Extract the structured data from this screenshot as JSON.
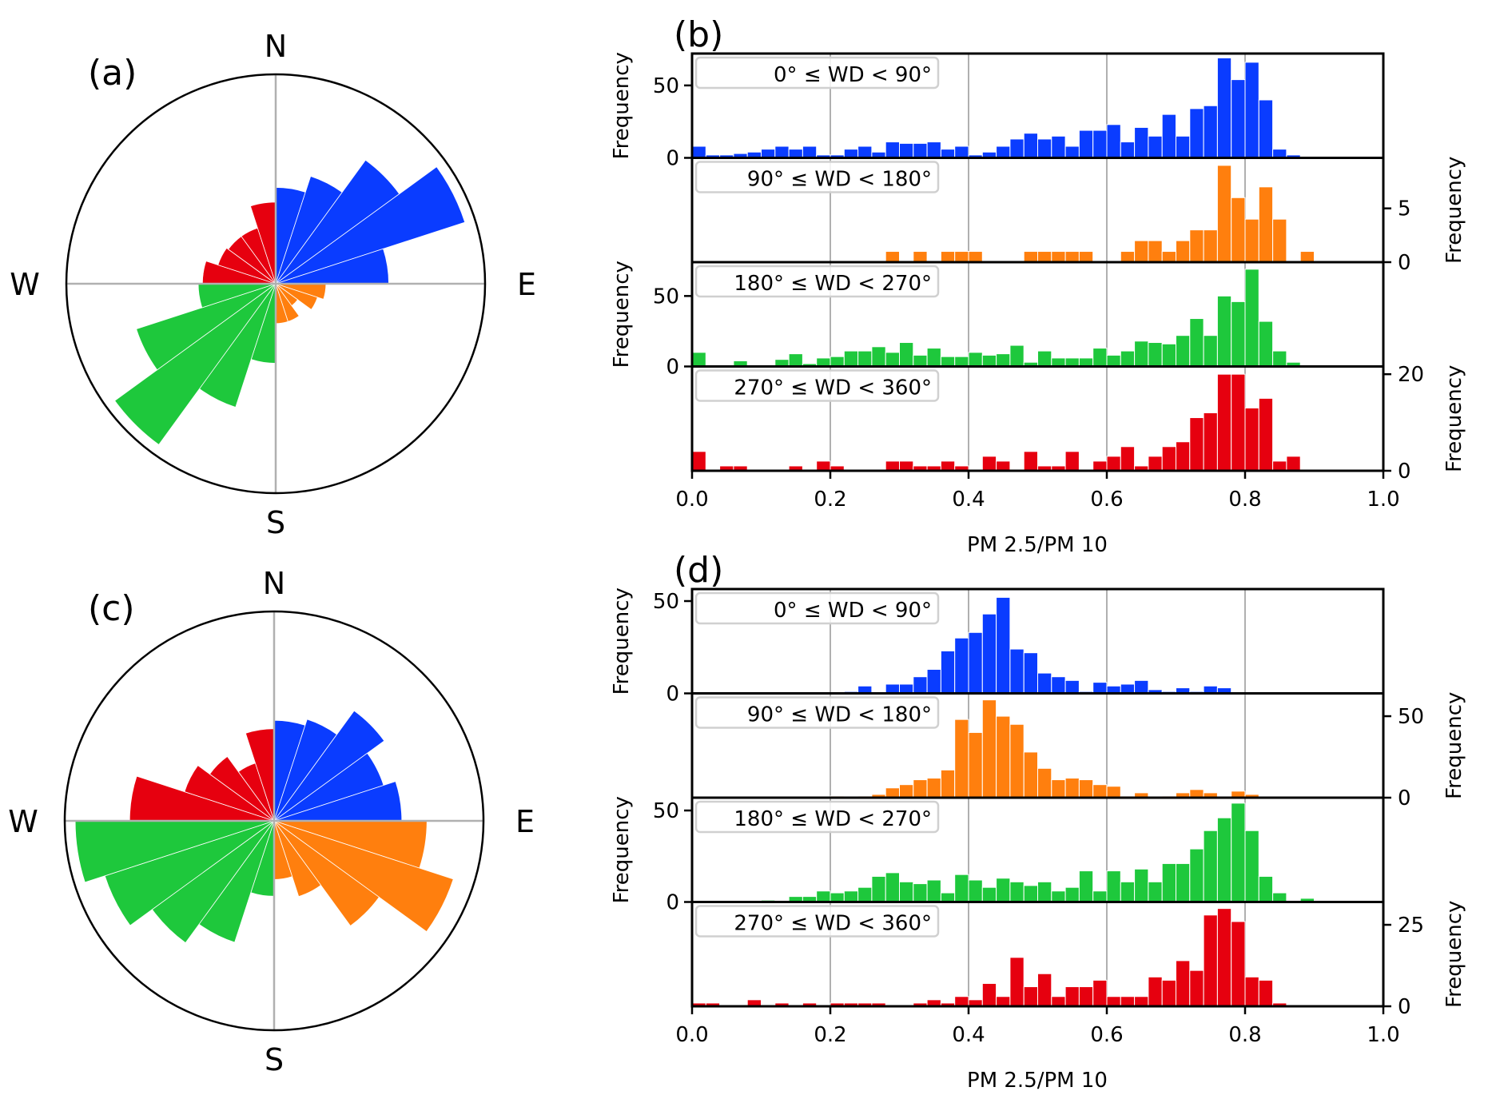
{
  "figure": {
    "colors": {
      "q1": "#0a3cff",
      "q2": "#ff7f0e",
      "q3": "#1ec83c",
      "q4": "#e6000f",
      "grid": "#b0b0b0",
      "legend_border": "#d0d0d0"
    }
  },
  "chart_data": [
    {
      "id": "a",
      "type": "polar-bar",
      "panel_label": "(a)",
      "compass": {
        "n": "N",
        "e": "E",
        "s": "S",
        "w": "W"
      },
      "sector_width_deg": 18,
      "radial_max": 1.0,
      "radial_units": "relative frequency (fraction of max radius)",
      "sectors": {
        "start_deg": [
          0,
          18,
          36,
          54,
          72,
          90,
          108,
          126,
          144,
          162,
          180,
          198,
          216,
          234,
          252,
          270,
          288,
          306,
          324,
          342
        ],
        "values": [
          0.46,
          0.54,
          0.73,
          0.95,
          0.54,
          0.24,
          0.21,
          0.13,
          0.19,
          0.19,
          0.38,
          0.62,
          0.95,
          0.7,
          0.37,
          0.35,
          0.29,
          0.28,
          0.28,
          0.39
        ],
        "group": [
          "q1",
          "q1",
          "q1",
          "q1",
          "q1",
          "q2",
          "q2",
          "q2",
          "q2",
          "q2",
          "q3",
          "q3",
          "q3",
          "q3",
          "q3",
          "q4",
          "q4",
          "q4",
          "q4",
          "q4"
        ]
      }
    },
    {
      "id": "c",
      "type": "polar-bar",
      "panel_label": "(c)",
      "compass": {
        "n": "N",
        "e": "E",
        "s": "S",
        "w": "W"
      },
      "sector_width_deg": 18,
      "radial_max": 1.0,
      "radial_units": "relative frequency (fraction of max radius)",
      "sectors": {
        "start_deg": [
          0,
          18,
          36,
          54,
          72,
          90,
          108,
          126,
          144,
          162,
          180,
          198,
          216,
          234,
          252,
          270,
          288,
          306,
          324,
          342
        ],
        "values": [
          0.48,
          0.51,
          0.65,
          0.55,
          0.61,
          0.73,
          0.9,
          0.62,
          0.38,
          0.28,
          0.36,
          0.61,
          0.72,
          0.85,
          0.95,
          0.69,
          0.45,
          0.38,
          0.29,
          0.44
        ],
        "group": [
          "q1",
          "q1",
          "q1",
          "q1",
          "q1",
          "q2",
          "q2",
          "q2",
          "q2",
          "q2",
          "q3",
          "q3",
          "q3",
          "q3",
          "q3",
          "q4",
          "q4",
          "q4",
          "q4",
          "q4"
        ]
      }
    },
    {
      "id": "b",
      "type": "bar",
      "subtype": "stacked-histograms",
      "panel_label": "(b)",
      "xlabel": "PM 2.5/PM 10",
      "xlim": [
        0.0,
        1.0
      ],
      "xticks": [
        "0.0",
        "0.2",
        "0.4",
        "0.6",
        "0.8",
        "1.0"
      ],
      "bin_width": 0.02,
      "grid": "vertical",
      "subplots": [
        {
          "group": "q1",
          "legend": "0° ≤ WD <  90°",
          "ylabel": "Frequency",
          "y_axis_side": "left",
          "ylim": [
            0,
            72
          ],
          "yticks": [
            "0",
            "50"
          ],
          "ytick_values": [
            0,
            50
          ],
          "values": [
            8,
            2,
            2,
            3,
            4,
            6,
            8,
            6,
            8,
            2,
            2,
            6,
            8,
            4,
            11,
            10,
            10,
            11,
            6,
            8,
            2,
            4,
            8,
            13,
            17,
            13,
            15,
            8,
            19,
            19,
            23,
            11,
            21,
            15,
            30,
            15,
            34,
            36,
            69,
            54,
            66,
            40,
            6,
            2,
            0,
            0,
            0,
            0,
            0,
            0
          ]
        },
        {
          "group": "q2",
          "legend": "90° ≤ WD < 180°",
          "ylabel": "Frequency",
          "y_axis_side": "right",
          "ylim": [
            0,
            9.7
          ],
          "yticks": [
            "0",
            "5"
          ],
          "ytick_values": [
            0,
            5
          ],
          "values": [
            0,
            0,
            0,
            0,
            0,
            0,
            0,
            0,
            0,
            0,
            0,
            0,
            0,
            0,
            1,
            0,
            1,
            0,
            1,
            1,
            1,
            0,
            0,
            0,
            1,
            1,
            1,
            1,
            1,
            0,
            0,
            1,
            2,
            2,
            1,
            2,
            3,
            3,
            9,
            6,
            4,
            7,
            4,
            0,
            1,
            0,
            0,
            0,
            0,
            0
          ]
        },
        {
          "group": "q3",
          "legend": "180° ≤ WD < 270°",
          "ylabel": "Frequency",
          "y_axis_side": "left",
          "ylim": [
            0,
            74
          ],
          "yticks": [
            "0",
            "50"
          ],
          "ytick_values": [
            0,
            50
          ],
          "values": [
            10,
            0,
            0,
            4,
            0,
            1,
            5,
            9,
            2,
            6,
            7,
            11,
            11,
            14,
            10,
            17,
            8,
            13,
            7,
            7,
            10,
            8,
            9,
            15,
            3,
            11,
            6,
            6,
            6,
            13,
            8,
            11,
            18,
            17,
            16,
            22,
            34,
            22,
            50,
            46,
            69,
            32,
            11,
            3,
            0,
            0,
            0,
            0,
            0,
            0
          ]
        },
        {
          "group": "q4",
          "legend": "270° ≤ WD < 360°",
          "ylabel": "Frequency",
          "y_axis_side": "right",
          "ylim": [
            0,
            21.6
          ],
          "yticks": [
            "0",
            "20"
          ],
          "ytick_values": [
            0,
            20
          ],
          "values": [
            4,
            0,
            1,
            1,
            0,
            0,
            0,
            1,
            0,
            2,
            1,
            0,
            0,
            0,
            2,
            2,
            1,
            1,
            2,
            1,
            0,
            3,
            2,
            0,
            4,
            1,
            1,
            4,
            0,
            2,
            3,
            5,
            1,
            3,
            5,
            6,
            11,
            12,
            20,
            20,
            13,
            15,
            2,
            3,
            0,
            0,
            0,
            0,
            0,
            0
          ]
        }
      ]
    },
    {
      "id": "d",
      "type": "bar",
      "subtype": "stacked-histograms",
      "panel_label": "(d)",
      "xlabel": "PM 2.5/PM 10",
      "xlim": [
        0.0,
        1.0
      ],
      "xticks": [
        "0.0",
        "0.2",
        "0.4",
        "0.6",
        "0.8",
        "1.0"
      ],
      "bin_width": 0.02,
      "grid": "vertical",
      "subplots": [
        {
          "group": "q1",
          "legend": "0° ≤ WD <  90°",
          "ylabel": "Frequency",
          "y_axis_side": "left",
          "ylim": [
            0,
            56.5
          ],
          "yticks": [
            "0",
            "50"
          ],
          "ytick_values": [
            0,
            50
          ],
          "values": [
            0,
            0,
            0,
            0,
            0,
            0,
            0,
            0,
            0,
            0,
            0,
            1,
            4,
            0,
            5,
            5,
            9,
            13,
            23,
            30,
            33,
            43,
            52,
            24,
            22,
            11,
            9,
            7,
            1,
            6,
            4,
            5,
            7,
            2,
            1,
            3,
            1,
            4,
            3,
            0,
            0,
            0,
            0,
            0,
            0,
            0,
            0,
            0,
            0,
            0
          ]
        },
        {
          "group": "q2",
          "legend": "90° ≤ WD < 180°",
          "ylabel": "Frequency",
          "y_axis_side": "right",
          "ylim": [
            0,
            64
          ],
          "yticks": [
            "0",
            "50"
          ],
          "ytick_values": [
            0,
            50
          ],
          "values": [
            0,
            0,
            0,
            0,
            0,
            0,
            0,
            0,
            0,
            0,
            1,
            0,
            1,
            2,
            6,
            8,
            11,
            12,
            17,
            48,
            40,
            60,
            50,
            45,
            28,
            18,
            11,
            12,
            11,
            8,
            7,
            1,
            3,
            0,
            1,
            3,
            5,
            3,
            0,
            4,
            2,
            0,
            0,
            0,
            0,
            0,
            0,
            0,
            0,
            0
          ]
        },
        {
          "group": "q3",
          "legend": "180° ≤ WD < 270°",
          "ylabel": "Frequency",
          "y_axis_side": "left",
          "ylim": [
            0,
            57
          ],
          "yticks": [
            "0",
            "50"
          ],
          "ytick_values": [
            0,
            50
          ],
          "values": [
            0,
            0,
            0,
            0,
            0,
            1,
            0,
            3,
            3,
            6,
            5,
            6,
            8,
            14,
            16,
            11,
            10,
            12,
            5,
            15,
            12,
            8,
            13,
            11,
            9,
            11,
            6,
            8,
            17,
            6,
            17,
            11,
            18,
            11,
            21,
            21,
            29,
            39,
            46,
            54,
            39,
            14,
            5,
            0,
            2,
            0,
            0,
            0,
            0,
            0
          ]
        },
        {
          "group": "q4",
          "legend": "270° ≤ WD < 360°",
          "ylabel": "Frequency",
          "y_axis_side": "right",
          "ylim": [
            0,
            32
          ],
          "yticks": [
            "0",
            "25"
          ],
          "ytick_values": [
            0,
            25
          ],
          "values": [
            1,
            1,
            0,
            0,
            2,
            0,
            1,
            0,
            1,
            0,
            1,
            1,
            1,
            1,
            0,
            0,
            1,
            2,
            1,
            3,
            2,
            7,
            3,
            15,
            6,
            10,
            3,
            6,
            6,
            8,
            3,
            3,
            3,
            9,
            8,
            14,
            11,
            28,
            30,
            26,
            9,
            8,
            1,
            0,
            0,
            0,
            0,
            0,
            0,
            0
          ]
        }
      ]
    }
  ]
}
